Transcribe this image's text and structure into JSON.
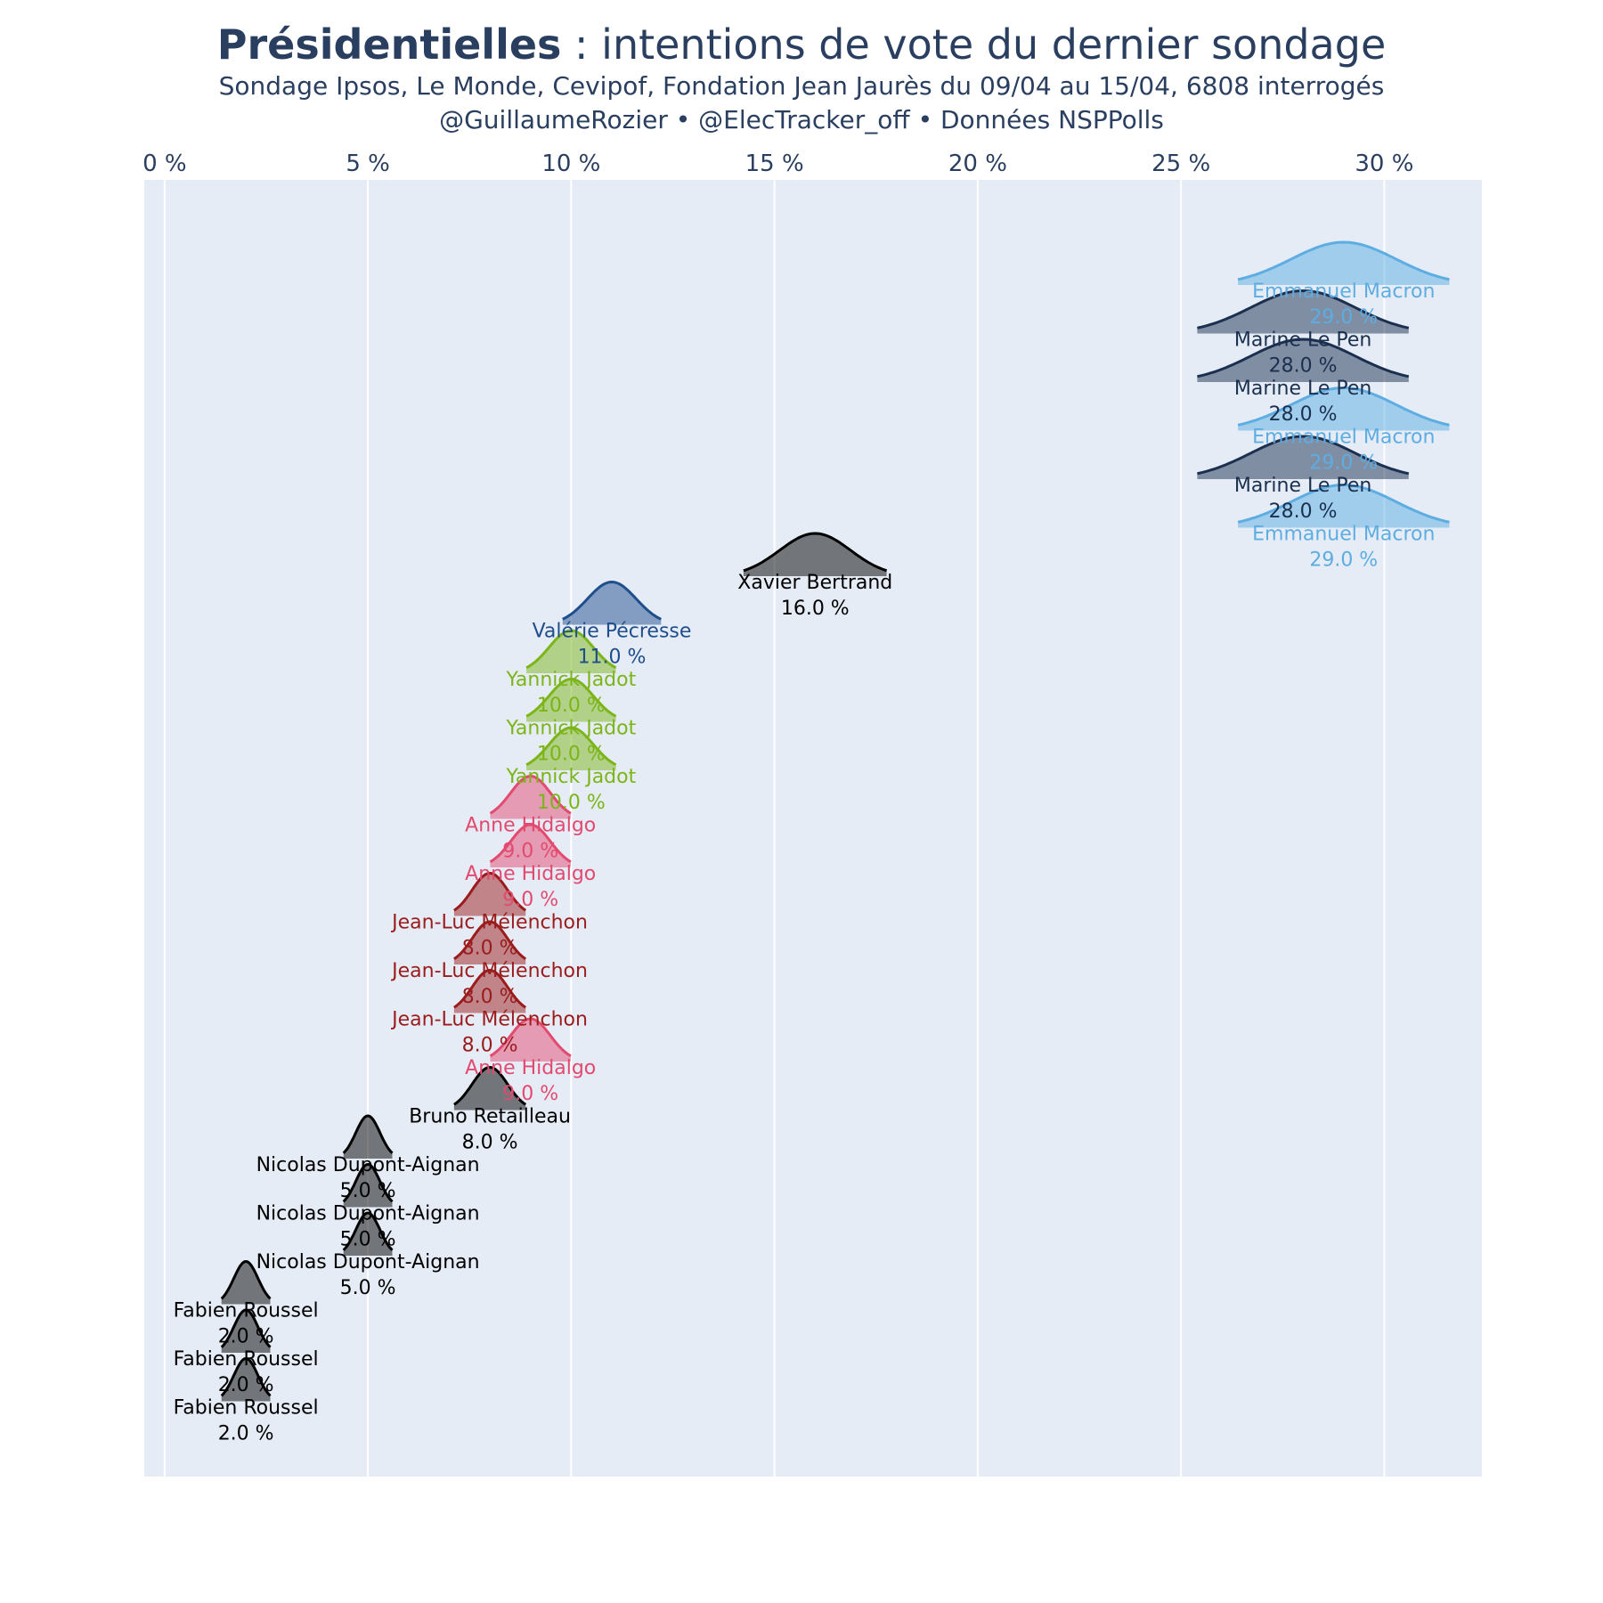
{
  "header": {
    "title_bold": "Présidentielles",
    "title_rest": " : intentions de vote du dernier sondage",
    "subtitle": "Sondage Ipsos, Le Monde, Cevipof, Fondation Jean Jaurès du 09/04 au 15/04, 6808 interrogés",
    "credits": "@GuillaumeRozier • @ElecTracker_off • Données NSPPolls"
  },
  "chart_data": {
    "type": "ridgeline",
    "xaxis": {
      "range": [
        -0.5,
        32.4
      ],
      "ticks": [
        0,
        5,
        10,
        15,
        20,
        25,
        30
      ],
      "tick_labels": [
        "0 %",
        "5 %",
        "10 %",
        "15 %",
        "20 %",
        "25 %",
        "30 %"
      ],
      "position": "top",
      "grid": true
    },
    "plot_bgcolor": "#e5ecf6",
    "rows": [
      {
        "name": "Emmanuel Macron",
        "value": 29.0,
        "label": "29.0 %",
        "color": "#5dade2"
      },
      {
        "name": "Marine Le Pen",
        "value": 28.0,
        "label": "28.0 %",
        "color": "#1b2f4f"
      },
      {
        "name": "Marine Le Pen",
        "value": 28.0,
        "label": "28.0 %",
        "color": "#1b2f4f"
      },
      {
        "name": "Emmanuel Macron",
        "value": 29.0,
        "label": "29.0 %",
        "color": "#5dade2"
      },
      {
        "name": "Marine Le Pen",
        "value": 28.0,
        "label": "28.0 %",
        "color": "#1b2f4f"
      },
      {
        "name": "Emmanuel Macron",
        "value": 29.0,
        "label": "29.0 %",
        "color": "#5dade2"
      },
      {
        "name": "Xavier Bertrand",
        "value": 16.0,
        "label": "16.0 %",
        "color": "#000000"
      },
      {
        "name": "Valérie Pécresse",
        "value": 11.0,
        "label": "11.0 %",
        "color": "#1f4e8c"
      },
      {
        "name": "Yannick Jadot",
        "value": 10.0,
        "label": "10.0 %",
        "color": "#7cb518"
      },
      {
        "name": "Yannick Jadot",
        "value": 10.0,
        "label": "10.0 %",
        "color": "#7cb518"
      },
      {
        "name": "Yannick Jadot",
        "value": 10.0,
        "label": "10.0 %",
        "color": "#7cb518"
      },
      {
        "name": "Anne Hidalgo",
        "value": 9.0,
        "label": "9.0 %",
        "color": "#e34a6f"
      },
      {
        "name": "Anne Hidalgo",
        "value": 9.0,
        "label": "9.0 %",
        "color": "#e34a6f"
      },
      {
        "name": "Jean-Luc Mélenchon",
        "value": 8.0,
        "label": "8.0 %",
        "color": "#9b1c1c"
      },
      {
        "name": "Jean-Luc Mélenchon",
        "value": 8.0,
        "label": "8.0 %",
        "color": "#9b1c1c"
      },
      {
        "name": "Jean-Luc Mélenchon",
        "value": 8.0,
        "label": "8.0 %",
        "color": "#9b1c1c"
      },
      {
        "name": "Anne Hidalgo",
        "value": 9.0,
        "label": "9.0 %",
        "color": "#e34a6f"
      },
      {
        "name": "Bruno Retailleau",
        "value": 8.0,
        "label": "8.0 %",
        "color": "#000000"
      },
      {
        "name": "Nicolas Dupont-Aignan",
        "value": 5.0,
        "label": "5.0 %",
        "color": "#000000"
      },
      {
        "name": "Nicolas Dupont-Aignan",
        "value": 5.0,
        "label": "5.0 %",
        "color": "#000000"
      },
      {
        "name": "Nicolas Dupont-Aignan",
        "value": 5.0,
        "label": "5.0 %",
        "color": "#000000"
      },
      {
        "name": "Fabien Roussel",
        "value": 2.0,
        "label": "2.0 %",
        "color": "#000000"
      },
      {
        "name": "Fabien Roussel",
        "value": 2.0,
        "label": "2.0 %",
        "color": "#000000"
      },
      {
        "name": "Fabien Roussel",
        "value": 2.0,
        "label": "2.0 %",
        "color": "#000000"
      }
    ]
  }
}
